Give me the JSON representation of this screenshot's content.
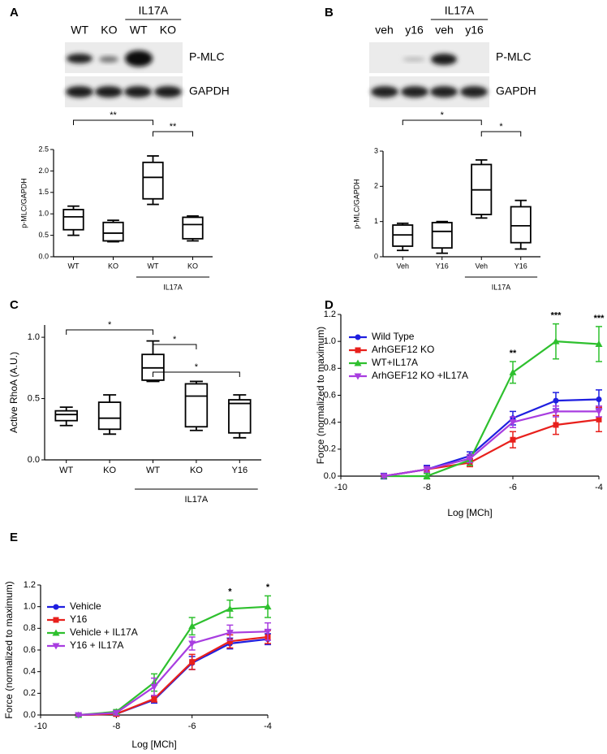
{
  "chart_data": [
    {
      "type": "box",
      "panel": "A",
      "blot": {
        "lanes": [
          "WT",
          "KO",
          "WT",
          "KO"
        ],
        "group": {
          "label": "IL17A",
          "from": 2,
          "to": 3
        },
        "rows": [
          "P-MLC",
          "GAPDH"
        ]
      },
      "y_label": "p-MLC/GAPDH",
      "categories": [
        "WT",
        "KO",
        "WT",
        "KO"
      ],
      "group": {
        "label": "IL17A",
        "from": 2,
        "to": 3
      },
      "boxes": [
        {
          "min": 0.5,
          "q1": 0.63,
          "median": 0.93,
          "q3": 1.1,
          "max": 1.18
        },
        {
          "min": 0.35,
          "q1": 0.37,
          "median": 0.55,
          "q3": 0.8,
          "max": 0.85
        },
        {
          "min": 1.22,
          "q1": 1.35,
          "median": 1.85,
          "q3": 2.2,
          "max": 2.35
        },
        {
          "min": 0.37,
          "q1": 0.42,
          "median": 0.75,
          "q3": 0.92,
          "max": 0.95
        }
      ],
      "ylim": [
        0,
        2.5
      ],
      "yticks": [
        {
          "value": 0,
          "label": "0.0"
        },
        0.5,
        {
          "value": 1,
          "label": "1.0"
        },
        1.5,
        {
          "value": 2,
          "label": "2.0"
        },
        2.5
      ],
      "brackets": [
        {
          "from": 0,
          "to": 2,
          "label": "**"
        },
        {
          "from": 2,
          "to": 3,
          "label": "**"
        }
      ]
    },
    {
      "type": "box",
      "panel": "B",
      "blot": {
        "lanes": [
          "veh",
          "y16",
          "veh",
          "y16"
        ],
        "group": {
          "label": "IL17A",
          "from": 2,
          "to": 3
        },
        "rows": [
          "P-MLC",
          "GAPDH"
        ]
      },
      "y_label": "p-MLC/GAPDH",
      "categories": [
        "Veh",
        "Y16",
        "Veh",
        "Y16"
      ],
      "group": {
        "label": "IL17A",
        "from": 2,
        "to": 3
      },
      "boxes": [
        {
          "min": 0.18,
          "q1": 0.3,
          "median": 0.62,
          "q3": 0.9,
          "max": 0.95
        },
        {
          "min": 0.1,
          "q1": 0.25,
          "median": 0.72,
          "q3": 0.97,
          "max": 1.0
        },
        {
          "min": 1.1,
          "q1": 1.2,
          "median": 1.9,
          "q3": 2.62,
          "max": 2.75
        },
        {
          "min": 0.22,
          "q1": 0.4,
          "median": 0.88,
          "q3": 1.42,
          "max": 1.6
        }
      ],
      "ylim": [
        0,
        3
      ],
      "yticks": [
        0,
        1,
        2,
        3
      ],
      "brackets": [
        {
          "from": 0,
          "to": 2,
          "label": "*"
        },
        {
          "from": 2,
          "to": 3,
          "label": "*"
        }
      ]
    },
    {
      "type": "box",
      "panel": "C",
      "y_label": "Active RhoA (A.U.)",
      "categories": [
        "WT",
        "KO",
        "WT",
        "KO",
        "Y16"
      ],
      "group": {
        "label": "IL17A",
        "from": 2,
        "to": 4
      },
      "boxes": [
        {
          "min": 0.28,
          "q1": 0.32,
          "median": 0.37,
          "q3": 0.4,
          "max": 0.43
        },
        {
          "min": 0.21,
          "q1": 0.25,
          "median": 0.34,
          "q3": 0.47,
          "max": 0.53
        },
        {
          "min": 0.64,
          "q1": 0.65,
          "median": 0.75,
          "q3": 0.86,
          "max": 0.97
        },
        {
          "min": 0.24,
          "q1": 0.27,
          "median": 0.52,
          "q3": 0.62,
          "max": 0.64
        },
        {
          "min": 0.18,
          "q1": 0.22,
          "median": 0.46,
          "q3": 0.49,
          "max": 0.53
        }
      ],
      "ylim": [
        0,
        1.1
      ],
      "yticks": [
        {
          "value": 0,
          "label": "0.0"
        },
        0.5,
        {
          "value": 1,
          "label": "1.0"
        }
      ],
      "brackets": [
        {
          "from": 0,
          "to": 2,
          "label": "*"
        },
        {
          "from": 2,
          "to": 3,
          "label": "*"
        },
        {
          "from": 2,
          "to": 4,
          "label": "*"
        }
      ]
    },
    {
      "type": "line",
      "panel": "D",
      "x_label": "Log [MCh]",
      "y_label": "Force (normalized to maximum)",
      "x": [
        -9,
        -8,
        -7,
        -6,
        -5,
        -4
      ],
      "series": [
        {
          "name": "Wild Type",
          "color": "#1f1fe0",
          "values": [
            0,
            0.05,
            0.15,
            0.43,
            0.56,
            0.57
          ],
          "errors": [
            0.02,
            0.03,
            0.03,
            0.05,
            0.06,
            0.07
          ]
        },
        {
          "name": "ArhGEF12 KO",
          "color": "#e8201c",
          "values": [
            0,
            0.05,
            0.1,
            0.27,
            0.38,
            0.42
          ],
          "errors": [
            0.01,
            0.02,
            0.03,
            0.06,
            0.07,
            0.09
          ]
        },
        {
          "name": "WT+IL17A",
          "color": "#2ec02e",
          "values": [
            0,
            0,
            0.12,
            0.77,
            1.0,
            0.98
          ],
          "errors": [
            0.01,
            0.02,
            0.04,
            0.08,
            0.13,
            0.13
          ]
        },
        {
          "name": "ArhGEF12 KO +IL17A",
          "color": "#a83de0",
          "values": [
            0,
            0.05,
            0.13,
            0.4,
            0.48,
            0.48
          ],
          "errors": [
            0.01,
            0.02,
            0.03,
            0.04,
            0.04,
            0.04
          ]
        }
      ],
      "xlim": [
        -10,
        -4
      ],
      "xticks": [
        -10,
        -8,
        -6,
        -4
      ],
      "ylim": [
        0,
        1.2
      ],
      "yticks": [
        {
          "value": 0,
          "label": "0.0"
        },
        0.2,
        0.4,
        0.6,
        0.8,
        {
          "value": 1,
          "label": "1.0"
        },
        1.2
      ],
      "legend": "upper left",
      "annotations": [
        {
          "x": -6,
          "text": "**"
        },
        {
          "x": -5,
          "text": "***"
        },
        {
          "x": -4,
          "text": "***"
        }
      ]
    },
    {
      "type": "line",
      "panel": "E",
      "x_label": "Log [MCh]",
      "y_label": "Force (normalized to maximum)",
      "x": [
        -9,
        -8,
        -7,
        -6,
        -5,
        -4
      ],
      "series": [
        {
          "name": "Vehicle",
          "color": "#1f1fe0",
          "values": [
            0,
            0.01,
            0.14,
            0.48,
            0.66,
            0.7
          ],
          "errors": [
            0.01,
            0.02,
            0.03,
            0.06,
            0.05,
            0.05
          ]
        },
        {
          "name": "Y16",
          "color": "#e8201c",
          "values": [
            0,
            0.01,
            0.15,
            0.49,
            0.68,
            0.72
          ],
          "errors": [
            0.01,
            0.02,
            0.03,
            0.07,
            0.06,
            0.06
          ]
        },
        {
          "name": "Vehicle + IL17A",
          "color": "#2ec02e",
          "values": [
            0,
            0.03,
            0.3,
            0.82,
            0.98,
            1.0
          ],
          "errors": [
            0.01,
            0.02,
            0.08,
            0.08,
            0.08,
            0.1
          ]
        },
        {
          "name": "Y16 + IL17A",
          "color": "#a83de0",
          "values": [
            0,
            0.02,
            0.26,
            0.66,
            0.76,
            0.77
          ],
          "errors": [
            0.01,
            0.02,
            0.08,
            0.06,
            0.07,
            0.08
          ]
        }
      ],
      "xlim": [
        -10,
        -4
      ],
      "xticks": [
        -10,
        -8,
        -6,
        -4
      ],
      "ylim": [
        0,
        1.2
      ],
      "yticks": [
        {
          "value": 0,
          "label": "0.0"
        },
        0.2,
        0.4,
        0.6,
        0.8,
        {
          "value": 1,
          "label": "1.0"
        },
        1.2
      ],
      "legend": "upper left",
      "annotations": [
        {
          "x": -5,
          "text": "*"
        },
        {
          "x": -4,
          "text": "*"
        }
      ]
    }
  ]
}
